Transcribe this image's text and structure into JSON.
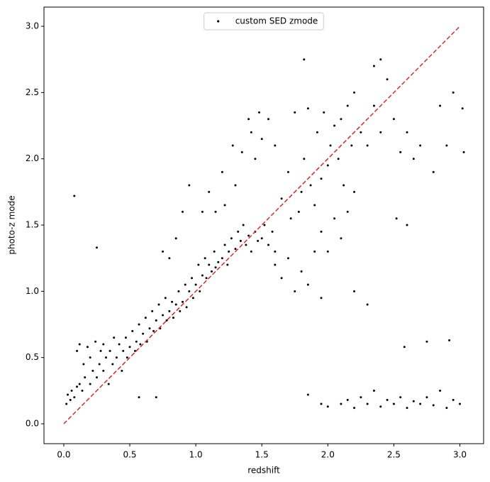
{
  "chart_data": {
    "type": "scatter",
    "xlabel": "redshift",
    "ylabel": "photo-z mode",
    "xlim": [
      -0.15,
      3.18
    ],
    "ylim": [
      -0.15,
      3.145
    ],
    "xticks": [
      {
        "value": 0,
        "label": "0.0"
      },
      0.5,
      {
        "value": 1,
        "label": "1.0"
      },
      1.5,
      {
        "value": 2,
        "label": "2.0"
      },
      2.5,
      {
        "value": 3,
        "label": "3.0"
      }
    ],
    "yticks": [
      {
        "value": 0,
        "label": "0.0"
      },
      0.5,
      {
        "value": 1,
        "label": "1.0"
      },
      1.5,
      {
        "value": 2,
        "label": "2.0"
      },
      2.5,
      {
        "value": 3,
        "label": "3.0"
      }
    ],
    "legend": "upper center",
    "reference_line": {
      "x": [
        0,
        3
      ],
      "y": [
        0,
        3
      ],
      "color": "#d62728",
      "dashed": true
    },
    "series": [
      {
        "name": "custom SED zmode",
        "color": "#000000",
        "x": [
          0.02,
          0.03,
          0.05,
          0.06,
          0.08,
          0.1,
          0.1,
          0.12,
          0.12,
          0.14,
          0.15,
          0.16,
          0.18,
          0.2,
          0.2,
          0.22,
          0.24,
          0.25,
          0.27,
          0.28,
          0.3,
          0.3,
          0.32,
          0.34,
          0.35,
          0.37,
          0.38,
          0.4,
          0.42,
          0.44,
          0.45,
          0.47,
          0.48,
          0.5,
          0.52,
          0.54,
          0.55,
          0.57,
          0.58,
          0.6,
          0.62,
          0.63,
          0.65,
          0.67,
          0.68,
          0.7,
          0.72,
          0.73,
          0.75,
          0.77,
          0.78,
          0.8,
          0.82,
          0.83,
          0.85,
          0.87,
          0.88,
          0.9,
          0.92,
          0.93,
          0.95,
          0.97,
          0.98,
          1.0,
          1.02,
          1.03,
          1.05,
          1.07,
          1.08,
          1.1,
          1.12,
          1.14,
          1.15,
          1.17,
          1.2,
          1.22,
          1.24,
          1.25,
          1.27,
          1.3,
          1.32,
          1.34,
          1.36,
          1.38,
          1.4,
          1.42,
          1.45,
          1.47,
          1.5,
          1.52,
          1.55,
          1.58,
          1.6,
          1.05,
          1.1,
          1.15,
          1.2,
          1.22,
          1.28,
          1.3,
          1.35,
          1.4,
          1.42,
          1.45,
          1.48,
          1.5,
          1.55,
          1.6,
          0.95,
          0.9,
          0.85,
          0.8,
          0.75,
          1.65,
          1.7,
          1.72,
          1.75,
          1.78,
          1.8,
          1.82,
          1.85,
          1.87,
          1.9,
          1.92,
          1.95,
          1.97,
          2.0,
          2.02,
          2.05,
          2.08,
          2.1,
          2.12,
          2.15,
          2.18,
          2.2,
          2.25,
          2.3,
          2.35,
          2.4,
          2.45,
          2.5,
          2.55,
          2.6,
          2.65,
          2.7,
          2.8,
          2.85,
          2.9,
          1.6,
          1.65,
          1.7,
          1.75,
          1.8,
          1.85,
          1.9,
          1.95,
          2.0,
          2.05,
          2.1,
          2.15,
          2.2,
          1.85,
          1.95,
          2.0,
          2.1,
          2.15,
          2.2,
          2.25,
          2.3,
          2.35,
          2.4,
          2.45,
          2.5,
          2.55,
          2.6,
          2.65,
          2.7,
          2.75,
          2.8,
          2.85,
          2.9,
          2.95,
          3.0,
          0.08,
          0.25,
          0.57,
          0.7,
          2.58,
          2.75,
          2.92,
          2.3,
          2.4,
          2.35,
          3.02,
          3.03,
          2.95,
          1.82,
          2.52,
          2.6,
          2.2,
          1.95
        ],
        "values": [
          0.15,
          0.22,
          0.18,
          0.25,
          0.2,
          0.28,
          0.55,
          0.6,
          0.3,
          0.25,
          0.45,
          0.35,
          0.58,
          0.3,
          0.5,
          0.4,
          0.62,
          0.35,
          0.45,
          0.55,
          0.4,
          0.6,
          0.5,
          0.3,
          0.55,
          0.45,
          0.65,
          0.5,
          0.6,
          0.4,
          0.55,
          0.65,
          0.5,
          0.58,
          0.7,
          0.55,
          0.62,
          0.75,
          0.6,
          0.68,
          0.8,
          0.62,
          0.72,
          0.85,
          0.7,
          0.78,
          0.9,
          0.72,
          0.82,
          0.95,
          0.78,
          0.85,
          0.92,
          0.8,
          0.9,
          1.0,
          0.85,
          0.92,
          1.05,
          0.88,
          1.0,
          1.1,
          0.95,
          1.05,
          1.2,
          1.0,
          1.12,
          1.25,
          1.1,
          1.2,
          1.15,
          1.3,
          1.18,
          1.22,
          1.25,
          1.35,
          1.2,
          1.3,
          1.4,
          1.32,
          1.45,
          1.38,
          1.5,
          1.35,
          1.42,
          1.3,
          1.45,
          1.38,
          1.4,
          1.5,
          1.35,
          1.45,
          1.3,
          1.6,
          1.75,
          1.6,
          1.9,
          1.65,
          2.1,
          1.8,
          2.05,
          2.3,
          2.2,
          2.0,
          2.35,
          2.15,
          2.3,
          2.1,
          1.8,
          1.6,
          1.4,
          1.25,
          1.3,
          1.7,
          1.9,
          1.55,
          2.35,
          1.6,
          1.75,
          2.0,
          2.38,
          1.8,
          1.65,
          2.2,
          1.85,
          2.35,
          1.95,
          2.1,
          2.25,
          2.0,
          2.3,
          1.8,
          2.4,
          2.1,
          2.5,
          2.2,
          2.1,
          2.4,
          2.2,
          2.6,
          2.3,
          2.05,
          2.2,
          2.0,
          2.1,
          1.9,
          2.4,
          2.1,
          1.2,
          1.1,
          1.25,
          1.0,
          1.15,
          1.05,
          1.3,
          1.45,
          1.3,
          1.55,
          1.4,
          1.6,
          1.75,
          0.22,
          0.15,
          0.13,
          0.15,
          0.18,
          0.12,
          0.2,
          0.15,
          0.25,
          0.13,
          0.18,
          0.15,
          0.2,
          0.12,
          0.17,
          0.15,
          0.2,
          0.14,
          0.25,
          0.12,
          0.18,
          0.15,
          1.72,
          1.33,
          0.2,
          0.2,
          0.58,
          0.62,
          0.63,
          0.9,
          2.75,
          2.7,
          2.38,
          2.05,
          2.5,
          2.75,
          1.55,
          1.5,
          1.0,
          0.95
        ]
      }
    ]
  }
}
